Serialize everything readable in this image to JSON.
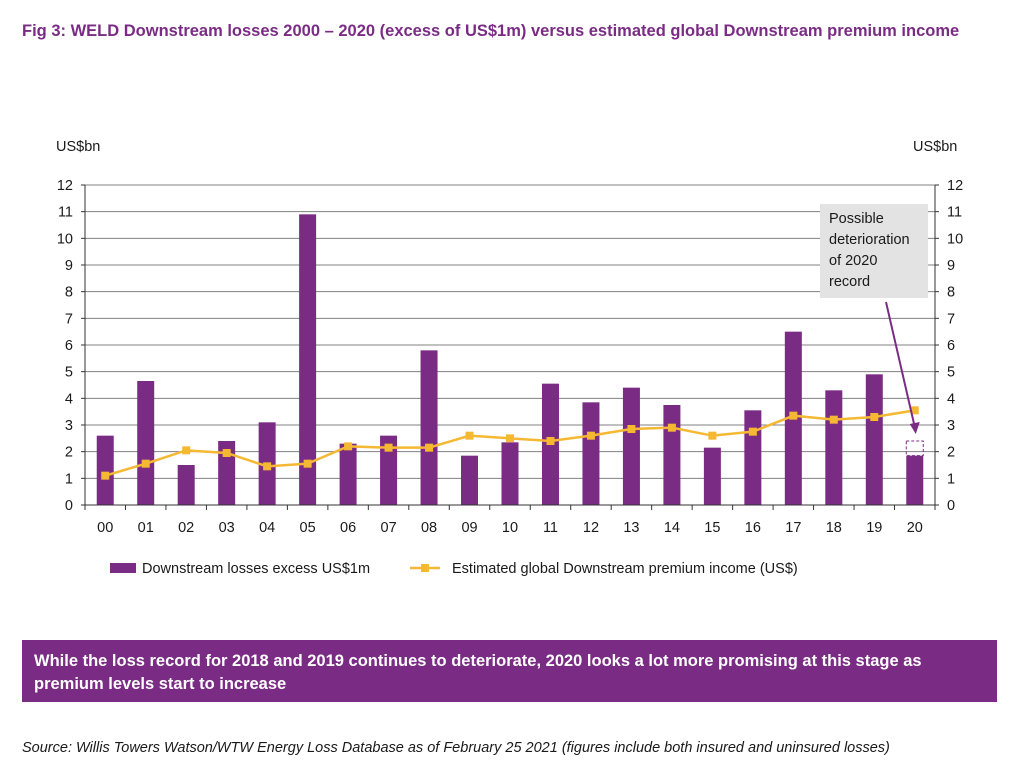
{
  "figure": {
    "title": "Fig 3: WELD Downstream losses 2000 – 2020 (excess of US$1m) versus estimated global Downstream premium income",
    "highlight_text": "While the loss record for 2018 and 2019 continues to deteriorate, 2020 looks a lot more promising at this stage as premium levels start to increase",
    "source_text": "Source: Willis Towers Watson/WTW Energy Loss Database as of February 25 2021 (figures include both insured and uninsured losses)"
  },
  "colors": {
    "bar": "#7a2c84",
    "line": "#f5b833",
    "grid": "#808080",
    "callout_bg": "#e3e3e3",
    "accent": "#7a2c84"
  },
  "chart_data": {
    "type": "bar",
    "categories": [
      "00",
      "01",
      "02",
      "03",
      "04",
      "05",
      "06",
      "07",
      "08",
      "09",
      "10",
      "11",
      "12",
      "13",
      "14",
      "15",
      "16",
      "17",
      "18",
      "19",
      "20"
    ],
    "series": [
      {
        "name": "Downstream losses excess US$1m",
        "type": "bar",
        "axis": "left",
        "values": [
          2.6,
          4.65,
          1.5,
          2.4,
          3.1,
          10.9,
          2.3,
          2.6,
          5.8,
          1.85,
          2.35,
          4.55,
          3.85,
          4.4,
          3.75,
          2.15,
          3.55,
          6.5,
          4.3,
          4.9,
          1.85
        ]
      },
      {
        "name": "Estimated global Downstream premium income (US$)",
        "type": "line",
        "axis": "right",
        "values": [
          1.1,
          1.55,
          2.05,
          1.95,
          1.45,
          1.55,
          2.2,
          2.15,
          2.15,
          2.6,
          2.5,
          2.4,
          2.6,
          2.85,
          2.9,
          2.6,
          2.75,
          3.35,
          3.2,
          3.3,
          3.55
        ]
      }
    ],
    "possible_2020_record": 2.4,
    "ylabel_left": "US$bn",
    "ylabel_right": "US$bn",
    "yticks": [
      "0",
      "1",
      "2",
      "3",
      "4",
      "5",
      "6",
      "7",
      "8",
      "9",
      "10",
      "11",
      "12"
    ],
    "ylim": [
      0,
      12
    ],
    "grid": true,
    "legend_position": "bottom",
    "annotation": {
      "lines": [
        "Possible",
        "deterioration",
        "of 2020",
        "record"
      ]
    }
  }
}
